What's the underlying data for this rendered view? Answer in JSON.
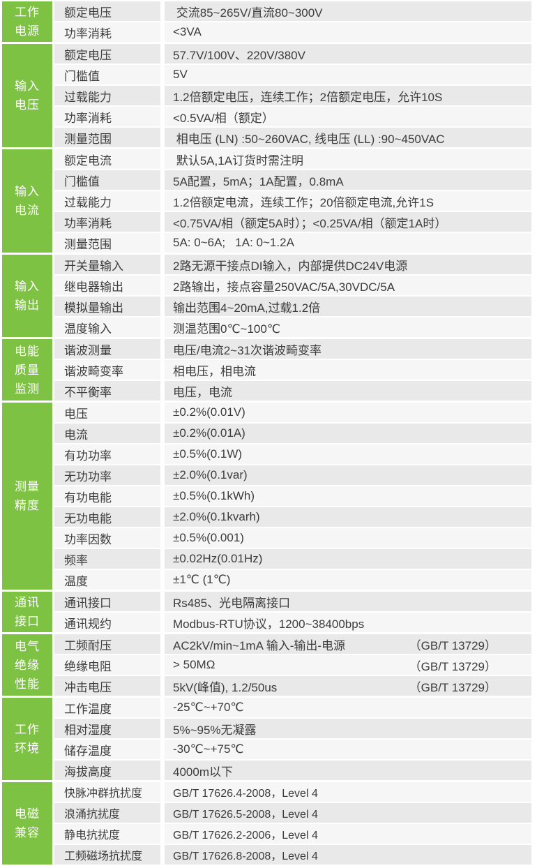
{
  "colors": {
    "accent_green": "#7dc242",
    "row_dark": "#e9e9e9",
    "row_light": "#f6f6f6",
    "text": "#3c3c3c",
    "background": "#ffffff",
    "category_text": "#ffffff"
  },
  "table": {
    "sections": [
      {
        "category": "工作电源",
        "rows": [
          {
            "name": "额定电压",
            "value": " 交流85~265V/直流80~300V"
          },
          {
            "name": "功率消耗",
            "value": "<3VA"
          }
        ]
      },
      {
        "category": "输入电压",
        "rows": [
          {
            "name": "额定电压",
            "value": "57.7V/100V、220V/380V"
          },
          {
            "name": "门槛值",
            "value": "5V"
          },
          {
            "name": "过载能力",
            "value": "1.2倍额定电压，连续工作；2倍额定电压，允许10S"
          },
          {
            "name": "功率消耗",
            "value": "<0.5VA/相（额定）"
          },
          {
            "name": "测量范围",
            "value": " 相电压 (LN) :50~260VAC, 线电压 (LL) :90~450VAC"
          }
        ]
      },
      {
        "category": "输入电流",
        "rows": [
          {
            "name": "额定电流",
            "value": " 默认5A,1A订货时需注明"
          },
          {
            "name": "门槛值",
            "value": "5A配置，5mA；1A配置，0.8mA"
          },
          {
            "name": "过载能力",
            "value": "1.2倍额定电流，连续工作；20倍额定电流,允许1S"
          },
          {
            "name": "功率消耗",
            "value": "<0.75VA/相（额定5A时）；<0.25VA/相（额定1A时）"
          },
          {
            "name": "测量范围",
            "value": "5A: 0~6A;   1A: 0~1.2A"
          }
        ]
      },
      {
        "category": "输入输出",
        "rows": [
          {
            "name": "开关量输入",
            "value": "2路无源干接点DI输入，内部提供DC24V电源"
          },
          {
            "name": "继电器输出",
            "value": "2路输出，接点容量250VAC/5A,30VDC/5A"
          },
          {
            "name": "模拟量输出",
            "value": "输出范围4~20mA,过载1.2倍"
          },
          {
            "name": "温度输入",
            "value": "测温范围0℃~100℃"
          }
        ]
      },
      {
        "category": "电能质量监测",
        "rows": [
          {
            "name": "谐波测量",
            "value": "电压/电流2~31次谐波畸变率"
          },
          {
            "name": "谐波畸变率",
            "value": "相电压，相电流"
          },
          {
            "name": "不平衡率",
            "value": "电压，电流"
          }
        ]
      },
      {
        "category": "测量精度",
        "rows": [
          {
            "name": "电压",
            "value": "±0.2%(0.01V)"
          },
          {
            "name": "电流",
            "value": "±0.2%(0.01A)"
          },
          {
            "name": "有功功率",
            "value": "±0.5%(0.1W)"
          },
          {
            "name": "无功功率",
            "value": "±2.0%(0.1var)"
          },
          {
            "name": "有功电能",
            "value": "±0.5%(0.1kWh)"
          },
          {
            "name": "无功电能",
            "value": "±2.0%(0.1kvarh)"
          },
          {
            "name": "功率因数",
            "value": "±0.5%(0.001)"
          },
          {
            "name": "频率",
            "value": "±0.02Hz(0.01Hz)"
          },
          {
            "name": "温度",
            "value": "±1℃ (1℃)"
          }
        ]
      },
      {
        "category": "通讯接口",
        "rows": [
          {
            "name": "通讯接口",
            "value": "Rs485、光电隔离接口"
          },
          {
            "name": "通讯规约",
            "value": "Modbus-RTU协议，1200~38400bps"
          }
        ]
      },
      {
        "category": "电气绝缘性能",
        "rows": [
          {
            "name": "工频耐压",
            "value": "AC2kV/min~1mA 输入-输出-电源",
            "note": "（GB/T 13729）"
          },
          {
            "name": "绝缘电阻",
            "value": "> 50MΩ",
            "note": "（GB/T 13729）"
          },
          {
            "name": "冲击电压",
            "value": "5kV(峰值), 1.2/50us",
            "note": "（GB/T 13729）"
          }
        ]
      },
      {
        "category": "工作环境",
        "rows": [
          {
            "name": "工作温度",
            "value": "-25℃~+70℃"
          },
          {
            "name": "相对湿度",
            "value": "5%~95%无凝露"
          },
          {
            "name": "储存温度",
            "value": "-30℃~+75℃"
          },
          {
            "name": "海拔高度",
            "value": "4000m以下"
          }
        ]
      },
      {
        "category": "电磁兼容",
        "rows": [
          {
            "name": "快脉冲群抗扰度",
            "value": "GB/T 17626.4-2008，Level 4"
          },
          {
            "name": "浪涌抗扰度",
            "value": "GB/T 17626.5-2008，Level 4"
          },
          {
            "name": "静电抗扰度",
            "value": "GB/T 17626.2-2006，Level 4"
          },
          {
            "name": "工频磁场抗扰度",
            "value": "GB/T 17626.8-2008，Level 4"
          }
        ]
      }
    ]
  }
}
